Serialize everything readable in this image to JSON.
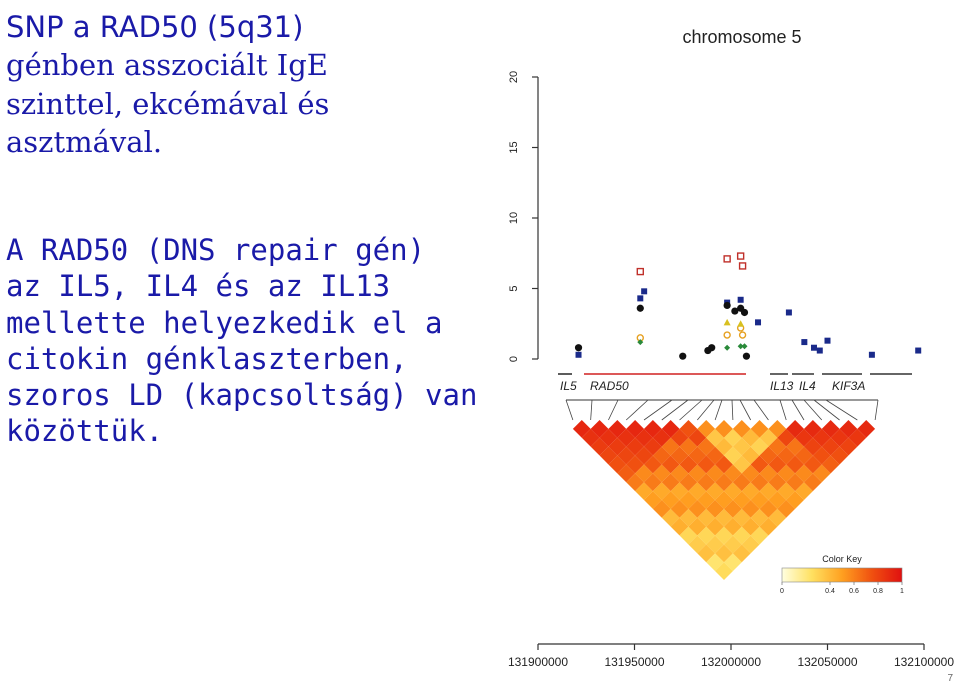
{
  "slide": {
    "title_lines": [
      {
        "text": "SNP a RAD50 (5q31)",
        "serif": false
      },
      {
        "text": "génben asszociált IgE",
        "serif": true
      },
      {
        "text": "szinttel, ekcémával és",
        "serif": true
      },
      {
        "text": "asztmával.",
        "serif": true
      }
    ],
    "body_lines": [
      "A RAD50 (DNS repair gén)",
      "az IL5, IL4 és az IL13",
      "mellette helyezkedik el a",
      "citokin génklaszterben,",
      "szoros LD (kapcsoltság) van",
      "közöttük."
    ],
    "page_number": "7"
  },
  "chart_data": {
    "type": "scatter",
    "title": "chromosome 5",
    "ylabel": "",
    "xlabel": "",
    "ylim": [
      0,
      20
    ],
    "yticks": [
      "0",
      "5",
      "10",
      "15",
      "20"
    ],
    "xlim": [
      131900000,
      132100000
    ],
    "xticks": [
      "131900000",
      "131950000",
      "132000000",
      "132050000",
      "132100000"
    ],
    "xtick_values": [
      131900000,
      131950000,
      132000000,
      132050000,
      132100000
    ],
    "gene_labels": [
      "IL5",
      "RAD50",
      "IL13",
      "IL4",
      "KIF3A"
    ],
    "colors": {
      "blue_square": "#1a2a8a",
      "black_circle": "#111111",
      "red_open_square": "#c0302a",
      "orange_open_circle": "#e6a020",
      "yellow_triangle": "#d8c020",
      "green_diamond": "#2a8a3a",
      "gene_bar_highlight": "#d02020"
    },
    "series": [
      {
        "marker": "blue_square",
        "points": [
          [
            131921000,
            0.3
          ],
          [
            131953000,
            4.3
          ],
          [
            131955000,
            4.8
          ],
          [
            131998000,
            4.0
          ],
          [
            132005000,
            4.2
          ],
          [
            132014000,
            2.6
          ],
          [
            132030000,
            3.3
          ],
          [
            132038000,
            1.2
          ],
          [
            132043000,
            0.8
          ],
          [
            132046000,
            0.6
          ],
          [
            132050000,
            1.3
          ],
          [
            132073000,
            0.3
          ],
          [
            132097000,
            0.6
          ]
        ]
      },
      {
        "marker": "black_circle",
        "points": [
          [
            131921000,
            0.8
          ],
          [
            131953000,
            3.6
          ],
          [
            131975000,
            0.2
          ],
          [
            131988000,
            0.6
          ],
          [
            131990000,
            0.8
          ],
          [
            131998000,
            3.8
          ],
          [
            132002000,
            3.4
          ],
          [
            132005000,
            3.6
          ],
          [
            132007000,
            3.3
          ],
          [
            132008000,
            0.2
          ]
        ]
      },
      {
        "marker": "red_open_square",
        "points": [
          [
            131953000,
            6.2
          ],
          [
            131998000,
            7.1
          ],
          [
            132005000,
            7.3
          ],
          [
            132006000,
            6.6
          ]
        ]
      },
      {
        "marker": "orange_open_circle",
        "points": [
          [
            131953000,
            1.5
          ],
          [
            131998000,
            1.7
          ],
          [
            132005000,
            2.2
          ],
          [
            132006000,
            1.7
          ]
        ]
      },
      {
        "marker": "yellow_triangle",
        "points": [
          [
            131998000,
            2.6
          ],
          [
            132005000,
            2.5
          ]
        ]
      },
      {
        "marker": "green_diamond",
        "points": [
          [
            131953000,
            1.2
          ],
          [
            131998000,
            0.8
          ],
          [
            132005000,
            0.9
          ],
          [
            132007000,
            0.9
          ]
        ]
      }
    ],
    "color_key": {
      "title": "Color Key",
      "ticks": [
        "0",
        "0.4",
        "0.6",
        "0.8",
        "1"
      ],
      "tick_values": [
        0,
        0.4,
        0.6,
        0.8,
        1
      ],
      "gradient": [
        "#ffffe0",
        "#ffe060",
        "#ffa020",
        "#f05010",
        "#e01010"
      ]
    },
    "ld_heatmap": {
      "n_snps": 18,
      "high_ld_color": "#e8200f",
      "mid_ld_color": "#f58a1a",
      "low_ld_color": "#fff07a",
      "lowest_ld_color": "#ffffb0"
    }
  }
}
